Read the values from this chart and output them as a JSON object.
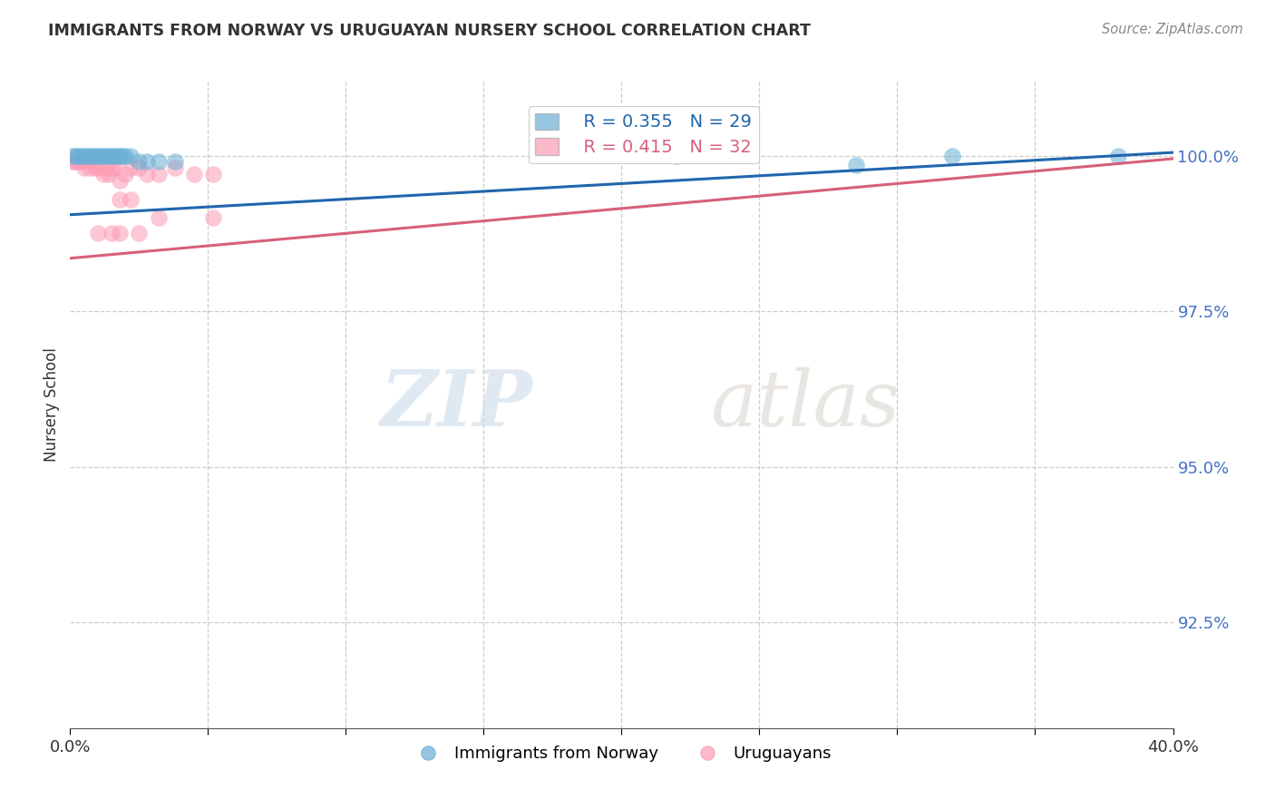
{
  "title": "IMMIGRANTS FROM NORWAY VS URUGUAYAN NURSERY SCHOOL CORRELATION CHART",
  "source": "Source: ZipAtlas.com",
  "ylabel": "Nursery School",
  "ytick_labels": [
    "100.0%",
    "97.5%",
    "95.0%",
    "92.5%"
  ],
  "ytick_values": [
    1.0,
    0.975,
    0.95,
    0.925
  ],
  "xlim": [
    0.0,
    0.4
  ],
  "ylim": [
    0.908,
    1.012
  ],
  "legend_blue_r": "R = 0.355",
  "legend_blue_n": "N = 29",
  "legend_pink_r": "R = 0.415",
  "legend_pink_n": "N = 32",
  "legend_label_blue": "Immigrants from Norway",
  "legend_label_pink": "Uruguayans",
  "blue_color": "#6baed6",
  "pink_color": "#fc9cb4",
  "blue_line_color": "#2166ac",
  "pink_line_color": "#d6607a",
  "watermark_zip": "ZIP",
  "watermark_atlas": "atlas",
  "blue_line_x0": 0.0,
  "blue_line_y0": 0.9905,
  "blue_line_x1": 0.4,
  "blue_line_y1": 1.0005,
  "pink_line_x0": 0.0,
  "pink_line_y0": 0.9835,
  "pink_line_x1": 0.4,
  "pink_line_y1": 0.9995,
  "blue_x": [
    0.001,
    0.002,
    0.003,
    0.004,
    0.005,
    0.006,
    0.007,
    0.008,
    0.009,
    0.01,
    0.011,
    0.012,
    0.013,
    0.014,
    0.015,
    0.016,
    0.017,
    0.018,
    0.019,
    0.02,
    0.022,
    0.025,
    0.028,
    0.032,
    0.038,
    0.22,
    0.285,
    0.32,
    0.38
  ],
  "blue_y": [
    1.0,
    1.0,
    1.0,
    1.0,
    1.0,
    1.0,
    1.0,
    1.0,
    1.0,
    1.0,
    1.0,
    1.0,
    1.0,
    1.0,
    1.0,
    1.0,
    1.0,
    1.0,
    1.0,
    1.0,
    1.0,
    0.999,
    0.999,
    0.999,
    0.999,
    1.0,
    0.9985,
    1.0,
    1.0
  ],
  "pink_x": [
    0.001,
    0.002,
    0.003,
    0.004,
    0.005,
    0.006,
    0.007,
    0.008,
    0.009,
    0.01,
    0.012,
    0.013,
    0.014,
    0.015,
    0.016,
    0.018,
    0.02,
    0.022,
    0.025,
    0.028,
    0.032,
    0.038,
    0.045,
    0.052,
    0.018,
    0.022,
    0.032,
    0.052,
    0.01,
    0.015,
    0.018,
    0.025
  ],
  "pink_y": [
    0.999,
    0.999,
    0.999,
    0.999,
    0.998,
    0.999,
    0.998,
    0.999,
    0.998,
    0.998,
    0.997,
    0.998,
    0.997,
    0.998,
    0.998,
    0.996,
    0.997,
    0.998,
    0.998,
    0.997,
    0.997,
    0.998,
    0.997,
    0.997,
    0.993,
    0.993,
    0.99,
    0.99,
    0.9875,
    0.9875,
    0.9875,
    0.9875
  ]
}
